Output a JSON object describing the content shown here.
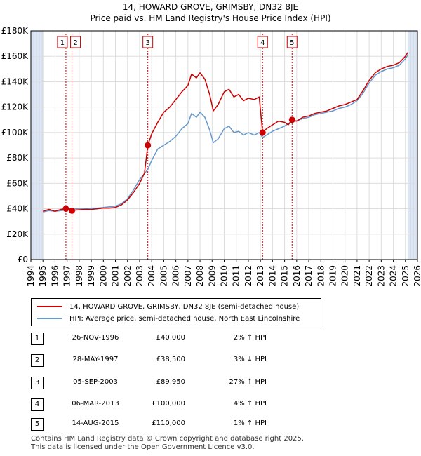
{
  "chart_data": {
    "type": "line",
    "title": "14, HOWARD GROVE, GRIMSBY, DN32 8JE",
    "subtitle": "Price paid vs. HM Land Registry's House Price Index (HPI)",
    "ylim": [
      0,
      180000
    ],
    "xlim": [
      1994,
      2026
    ],
    "y_ticks": [
      0,
      20000,
      40000,
      60000,
      80000,
      100000,
      120000,
      140000,
      160000,
      180000
    ],
    "y_tick_labels": [
      "£0",
      "£20K",
      "£40K",
      "£60K",
      "£80K",
      "£100K",
      "£120K",
      "£140K",
      "£160K",
      "£180K"
    ],
    "x_ticks": [
      1994,
      1995,
      1996,
      1997,
      1998,
      1999,
      2000,
      2001,
      2002,
      2003,
      2004,
      2005,
      2006,
      2007,
      2008,
      2009,
      2010,
      2011,
      2012,
      2013,
      2014,
      2015,
      2016,
      2017,
      2018,
      2019,
      2020,
      2021,
      2022,
      2023,
      2024,
      2025,
      2026
    ],
    "data_start_year": 1995.0,
    "data_end_year": 2025.2,
    "series": [
      {
        "name": "14, HOWARD GROVE, GRIMSBY, DN32 8JE (semi-detached house)",
        "color": "#cc0000",
        "points": [
          [
            1995.0,
            38000
          ],
          [
            1995.5,
            39500
          ],
          [
            1996.0,
            38000
          ],
          [
            1996.5,
            39500
          ],
          [
            1996.9,
            40000
          ],
          [
            1997.1,
            39500
          ],
          [
            1997.4,
            38500
          ],
          [
            1997.8,
            39000
          ],
          [
            1998.5,
            39500
          ],
          [
            1999.0,
            39500
          ],
          [
            1999.5,
            40000
          ],
          [
            2000.0,
            40500
          ],
          [
            2000.5,
            40500
          ],
          [
            2001.0,
            41000
          ],
          [
            2001.5,
            43000
          ],
          [
            2002.0,
            47000
          ],
          [
            2002.5,
            53000
          ],
          [
            2003.0,
            60000
          ],
          [
            2003.4,
            68000
          ],
          [
            2003.68,
            89950
          ],
          [
            2004.0,
            99000
          ],
          [
            2004.5,
            108000
          ],
          [
            2005.0,
            116000
          ],
          [
            2005.5,
            120000
          ],
          [
            2006.0,
            126000
          ],
          [
            2006.5,
            132000
          ],
          [
            2007.0,
            137000
          ],
          [
            2007.3,
            146000
          ],
          [
            2007.7,
            143000
          ],
          [
            2008.0,
            147000
          ],
          [
            2008.4,
            142000
          ],
          [
            2008.8,
            130000
          ],
          [
            2009.1,
            117000
          ],
          [
            2009.5,
            122000
          ],
          [
            2010.0,
            132000
          ],
          [
            2010.4,
            134000
          ],
          [
            2010.8,
            128000
          ],
          [
            2011.2,
            130000
          ],
          [
            2011.6,
            125000
          ],
          [
            2012.0,
            127000
          ],
          [
            2012.5,
            126000
          ],
          [
            2012.9,
            128000
          ],
          [
            2013.18,
            100000
          ],
          [
            2013.5,
            103000
          ],
          [
            2014.0,
            106000
          ],
          [
            2014.5,
            109000
          ],
          [
            2015.0,
            108000
          ],
          [
            2015.3,
            106000
          ],
          [
            2015.62,
            110000
          ],
          [
            2016.0,
            109000
          ],
          [
            2016.5,
            112000
          ],
          [
            2017.0,
            113000
          ],
          [
            2017.5,
            115000
          ],
          [
            2018.0,
            116000
          ],
          [
            2018.5,
            117000
          ],
          [
            2019.0,
            119000
          ],
          [
            2019.5,
            121000
          ],
          [
            2020.0,
            122000
          ],
          [
            2020.5,
            124000
          ],
          [
            2021.0,
            126000
          ],
          [
            2021.5,
            133000
          ],
          [
            2022.0,
            141000
          ],
          [
            2022.5,
            147000
          ],
          [
            2023.0,
            150000
          ],
          [
            2023.5,
            152000
          ],
          [
            2024.0,
            153000
          ],
          [
            2024.5,
            155000
          ],
          [
            2025.0,
            160000
          ],
          [
            2025.2,
            163000
          ]
        ]
      },
      {
        "name": "HPI: Average price, semi-detached house, North East Lincolnshire",
        "color": "#6699cc",
        "points": [
          [
            1995.0,
            37500
          ],
          [
            1995.5,
            38500
          ],
          [
            1996.0,
            38000
          ],
          [
            1996.5,
            38500
          ],
          [
            1996.9,
            39000
          ],
          [
            1997.4,
            39500
          ],
          [
            1997.8,
            40000
          ],
          [
            1998.5,
            40000
          ],
          [
            1999.0,
            40500
          ],
          [
            1999.5,
            40500
          ],
          [
            2000.0,
            41000
          ],
          [
            2000.5,
            41500
          ],
          [
            2001.0,
            42000
          ],
          [
            2001.5,
            44000
          ],
          [
            2002.0,
            48000
          ],
          [
            2002.5,
            55000
          ],
          [
            2003.0,
            63000
          ],
          [
            2003.68,
            71000
          ],
          [
            2004.0,
            78000
          ],
          [
            2004.5,
            87000
          ],
          [
            2005.0,
            90000
          ],
          [
            2005.5,
            93000
          ],
          [
            2006.0,
            97000
          ],
          [
            2006.5,
            103000
          ],
          [
            2007.0,
            107000
          ],
          [
            2007.3,
            115000
          ],
          [
            2007.7,
            112000
          ],
          [
            2008.0,
            116000
          ],
          [
            2008.4,
            112000
          ],
          [
            2008.8,
            102000
          ],
          [
            2009.1,
            92000
          ],
          [
            2009.5,
            95000
          ],
          [
            2010.0,
            103000
          ],
          [
            2010.4,
            105000
          ],
          [
            2010.8,
            100000
          ],
          [
            2011.2,
            101000
          ],
          [
            2011.6,
            98000
          ],
          [
            2012.0,
            100000
          ],
          [
            2012.5,
            98000
          ],
          [
            2012.9,
            100000
          ],
          [
            2013.18,
            96000
          ],
          [
            2013.5,
            98000
          ],
          [
            2014.0,
            101000
          ],
          [
            2014.5,
            103000
          ],
          [
            2015.0,
            105000
          ],
          [
            2015.62,
            109000
          ],
          [
            2016.0,
            109000
          ],
          [
            2016.5,
            111000
          ],
          [
            2017.0,
            112000
          ],
          [
            2017.5,
            114000
          ],
          [
            2018.0,
            115000
          ],
          [
            2018.5,
            116000
          ],
          [
            2019.0,
            117000
          ],
          [
            2019.5,
            119000
          ],
          [
            2020.0,
            120000
          ],
          [
            2020.5,
            122000
          ],
          [
            2021.0,
            125000
          ],
          [
            2021.5,
            131000
          ],
          [
            2022.0,
            139000
          ],
          [
            2022.5,
            145000
          ],
          [
            2023.0,
            148000
          ],
          [
            2023.5,
            150000
          ],
          [
            2024.0,
            151000
          ],
          [
            2024.5,
            153000
          ],
          [
            2025.0,
            158000
          ],
          [
            2025.2,
            161000
          ]
        ]
      }
    ],
    "sales": [
      {
        "id": "1",
        "x": 1996.9,
        "y": 40000
      },
      {
        "id": "2",
        "x": 1997.4,
        "y": 38500
      },
      {
        "id": "3",
        "x": 2003.68,
        "y": 89950
      },
      {
        "id": "4",
        "x": 2013.18,
        "y": 100000
      },
      {
        "id": "5",
        "x": 2015.62,
        "y": 110000
      }
    ]
  },
  "legend": {
    "property": "14, HOWARD GROVE, GRIMSBY, DN32 8JE (semi-detached house)",
    "hpi": "HPI: Average price, semi-detached house, North East Lincolnshire"
  },
  "transactions": [
    {
      "num": "1",
      "date": "26-NOV-1996",
      "price": "£40,000",
      "hpi": "2% ↑ HPI"
    },
    {
      "num": "2",
      "date": "28-MAY-1997",
      "price": "£38,500",
      "hpi": "3% ↓ HPI"
    },
    {
      "num": "3",
      "date": "05-SEP-2003",
      "price": "£89,950",
      "hpi": "27% ↑ HPI"
    },
    {
      "num": "4",
      "date": "06-MAR-2013",
      "price": "£100,000",
      "hpi": "4% ↑ HPI"
    },
    {
      "num": "5",
      "date": "14-AUG-2015",
      "price": "£110,000",
      "hpi": "1% ↑ HPI"
    }
  ],
  "footer": {
    "line1": "Contains HM Land Registry data © Crown copyright and database right 2025.",
    "line2": "This data is licensed under the Open Government Licence v3.0."
  },
  "colors": {
    "property": "#cc0000",
    "hpi": "#6699cc",
    "shade": "#dde6f3",
    "grid": "#dddddd"
  }
}
